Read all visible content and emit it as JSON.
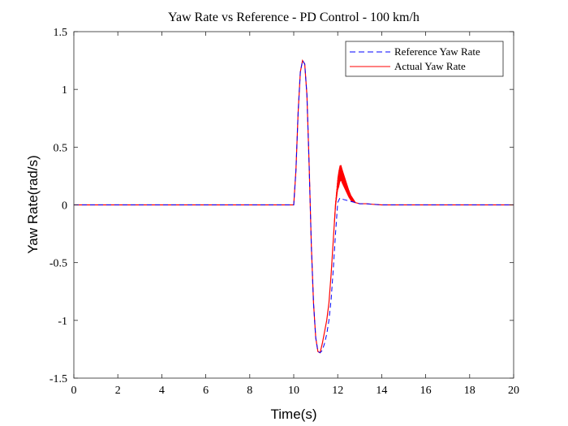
{
  "chart_data": {
    "type": "line",
    "title": "Yaw Rate vs Reference - PD Control - 100 km/h",
    "xlabel": "Time(s)",
    "ylabel": "Yaw Rate(rad/s)",
    "xlim": [
      0,
      20
    ],
    "ylim": [
      -1.5,
      1.5
    ],
    "xticks": [
      "0",
      "2",
      "4",
      "6",
      "8",
      "10",
      "12",
      "14",
      "16",
      "18",
      "20"
    ],
    "yticks": [
      "-1.5",
      "-1",
      "-0.5",
      "0",
      "0.5",
      "1",
      "1.5"
    ],
    "grid": false,
    "legend_position": "top-right",
    "series": [
      {
        "name": "Reference Yaw Rate",
        "color": "#0000ff",
        "style": "dashed",
        "x": [
          0,
          10.0,
          10.1,
          10.2,
          10.3,
          10.4,
          10.5,
          10.6,
          10.7,
          10.8,
          10.9,
          11.0,
          11.1,
          11.2,
          11.3,
          11.4,
          11.5,
          11.6,
          11.7,
          11.8,
          11.9,
          12.0,
          12.1,
          12.2,
          12.4,
          12.6,
          12.8,
          13.0,
          13.3,
          13.6,
          14.0,
          20
        ],
        "y": [
          0,
          0,
          0.3,
          0.8,
          1.15,
          1.25,
          1.22,
          0.95,
          0.35,
          -0.35,
          -0.85,
          -1.15,
          -1.27,
          -1.28,
          -1.26,
          -1.2,
          -1.12,
          -1.0,
          -0.82,
          -0.55,
          -0.25,
          0.02,
          0.06,
          0.05,
          0.04,
          0.03,
          0.02,
          0.01,
          0.01,
          0.005,
          0,
          0
        ]
      },
      {
        "name": "Actual Yaw Rate",
        "color": "#ff0000",
        "style": "solid",
        "x": [
          0,
          10.0,
          10.1,
          10.2,
          10.3,
          10.4,
          10.5,
          10.6,
          10.7,
          10.8,
          10.9,
          11.0,
          11.1,
          11.2,
          11.3,
          11.4,
          11.5,
          11.6,
          11.7,
          11.8,
          11.9,
          12.0,
          12.1,
          12.15,
          12.2,
          12.3,
          12.4,
          12.5,
          12.6,
          12.8,
          13.0,
          13.3,
          13.6,
          14.0,
          20
        ],
        "y": [
          0,
          0,
          0.3,
          0.8,
          1.15,
          1.25,
          1.22,
          0.95,
          0.35,
          -0.35,
          -0.85,
          -1.15,
          -1.27,
          -1.28,
          -1.2,
          -1.1,
          -1.0,
          -0.85,
          -0.6,
          -0.3,
          0.0,
          0.18,
          0.27,
          0.28,
          0.25,
          0.2,
          0.15,
          0.1,
          0.06,
          0.02,
          0.01,
          0.01,
          0.005,
          0,
          0
        ]
      }
    ]
  }
}
